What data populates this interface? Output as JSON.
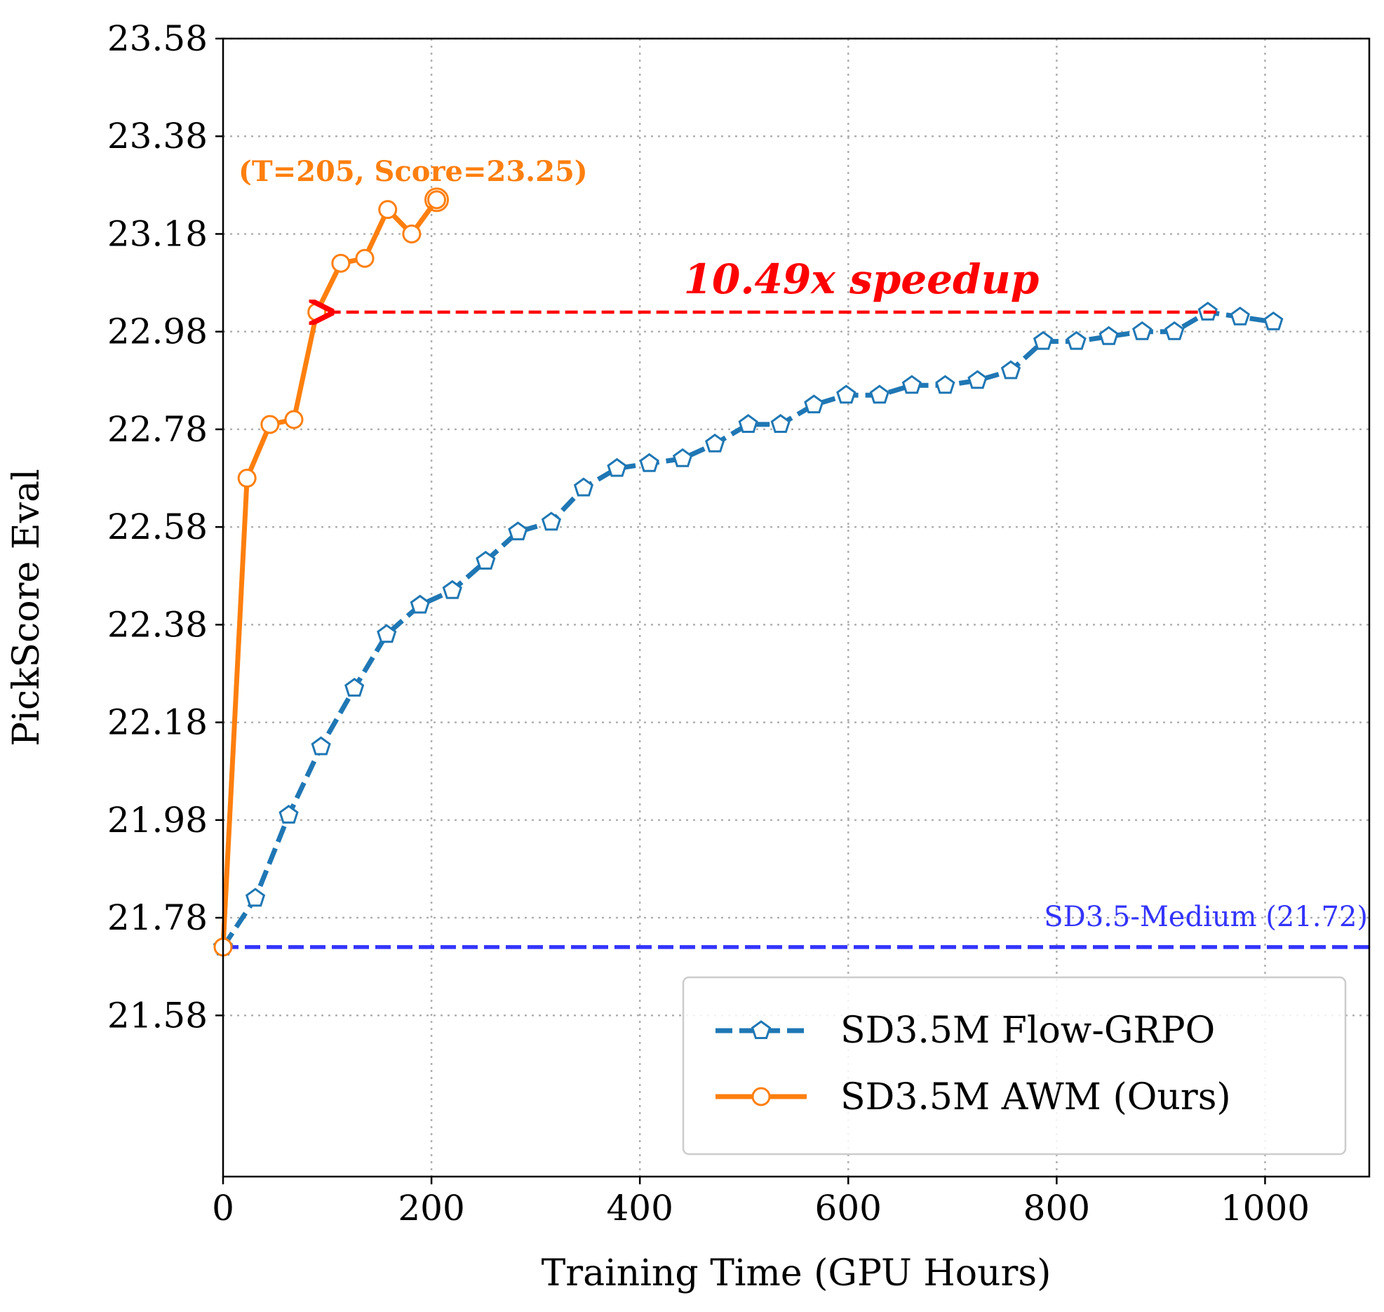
{
  "chart_data": {
    "type": "line",
    "title": "",
    "xlabel": "Training Time (GPU Hours)",
    "ylabel": "PickScore Eval",
    "xlim": [
      0,
      1100
    ],
    "ylim": [
      21.25,
      23.58
    ],
    "xticks": [
      0,
      200,
      400,
      600,
      800,
      1000
    ],
    "xtick_labels": [
      "0",
      "200",
      "400",
      "600",
      "800",
      "1000"
    ],
    "yticks": [
      21.58,
      21.78,
      21.98,
      22.18,
      22.38,
      22.58,
      22.78,
      22.98,
      23.18,
      23.38,
      23.58
    ],
    "ytick_labels": [
      "21.58",
      "21.78",
      "21.98",
      "22.18",
      "22.38",
      "22.58",
      "22.78",
      "22.98",
      "23.18",
      "23.38",
      "23.58"
    ],
    "grid": true,
    "series": [
      {
        "name": "SD3.5M Flow-GRPO",
        "color": "#1f77b4",
        "linestyle": "dashed",
        "marker": "pentagon",
        "x": [
          0,
          31,
          63,
          94,
          126,
          157,
          189,
          220,
          252,
          283,
          315,
          346,
          378,
          409,
          441,
          472,
          504,
          535,
          567,
          598,
          630,
          661,
          693,
          724,
          756,
          787,
          819,
          850,
          882,
          913,
          945,
          976,
          1008
        ],
        "y": [
          21.72,
          21.82,
          21.99,
          22.13,
          22.25,
          22.36,
          22.42,
          22.45,
          22.51,
          22.57,
          22.59,
          22.66,
          22.7,
          22.71,
          22.72,
          22.75,
          22.79,
          22.79,
          22.83,
          22.85,
          22.85,
          22.87,
          22.87,
          22.88,
          22.9,
          22.96,
          22.96,
          22.97,
          22.98,
          22.98,
          23.02,
          23.01,
          23.0
        ]
      },
      {
        "name": "SD3.5M AWM (Ours)",
        "color": "#ff7f0e",
        "linestyle": "solid",
        "marker": "circle",
        "x": [
          0,
          23,
          45,
          68,
          90,
          113,
          136,
          158,
          181,
          205
        ],
        "y": [
          21.72,
          22.68,
          22.79,
          22.8,
          23.02,
          23.12,
          23.13,
          23.23,
          23.18,
          23.25
        ]
      }
    ],
    "baseline": {
      "label": "SD3.5-Medium (21.72)",
      "value": 21.72,
      "color": "#3333ff"
    },
    "annotations": {
      "peak_label": "(T=205, Score=23.25)",
      "peak_color": "#ff7f0e",
      "speedup_label": "10.49x speedup",
      "speedup_color": "#ff0000",
      "speedup_arrow": {
        "from_x": 953,
        "to_x": 100,
        "y": 23.02
      }
    },
    "legend": {
      "position": "lower-right",
      "entries": [
        "SD3.5M Flow-GRPO",
        "SD3.5M AWM (Ours)"
      ]
    }
  }
}
